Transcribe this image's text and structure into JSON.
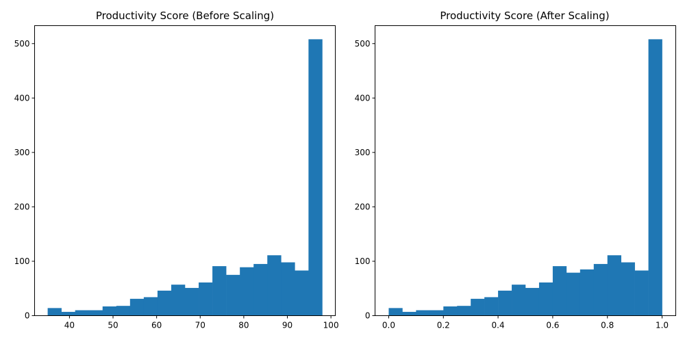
{
  "chart_data": [
    {
      "type": "bar",
      "histogram": true,
      "title": "Productivity Score (Before Scaling)",
      "xlabel": "",
      "ylabel": "",
      "bin_edges": [
        35,
        38.15,
        41.3,
        44.45,
        47.6,
        50.75,
        53.9,
        57.05,
        60.2,
        63.35,
        66.5,
        69.65,
        72.8,
        75.95,
        79.1,
        82.25,
        85.4,
        88.55,
        91.7,
        94.85,
        98
      ],
      "values": [
        14,
        7,
        10,
        10,
        17,
        18,
        31,
        34,
        46,
        57,
        51,
        61,
        91,
        75,
        89,
        95,
        111,
        98,
        83,
        508
      ],
      "xlim": [
        32,
        101
      ],
      "ylim": [
        0,
        533
      ],
      "xticks": [
        40,
        50,
        60,
        70,
        80,
        90,
        100
      ],
      "xtick_labels": [
        "40",
        "50",
        "60",
        "70",
        "80",
        "90",
        "100"
      ],
      "yticks": [
        0,
        100,
        200,
        300,
        400,
        500
      ],
      "ytick_labels": [
        "0",
        "100",
        "200",
        "300",
        "400",
        "500"
      ],
      "bar_color": "#1f77b4",
      "grid": false
    },
    {
      "type": "bar",
      "histogram": true,
      "title": "Productivity Score (After Scaling)",
      "xlabel": "",
      "ylabel": "",
      "bin_edges": [
        0,
        0.05,
        0.1,
        0.15,
        0.2,
        0.25,
        0.3,
        0.35,
        0.4,
        0.45,
        0.5,
        0.55,
        0.6,
        0.65,
        0.7,
        0.75,
        0.8,
        0.85,
        0.9,
        0.95,
        1.0
      ],
      "values": [
        14,
        7,
        10,
        10,
        17,
        18,
        31,
        34,
        46,
        57,
        51,
        61,
        91,
        79,
        85,
        95,
        111,
        98,
        83,
        508
      ],
      "xlim": [
        -0.05,
        1.05
      ],
      "ylim": [
        0,
        533
      ],
      "xticks": [
        0,
        0.2,
        0.4,
        0.6,
        0.8,
        1.0
      ],
      "xtick_labels": [
        "0.0",
        "0.2",
        "0.4",
        "0.6",
        "0.8",
        "1.0"
      ],
      "yticks": [
        0,
        100,
        200,
        300,
        400,
        500
      ],
      "ytick_labels": [
        "0",
        "100",
        "200",
        "300",
        "400",
        "500"
      ],
      "bar_color": "#1f77b4",
      "grid": false
    }
  ]
}
